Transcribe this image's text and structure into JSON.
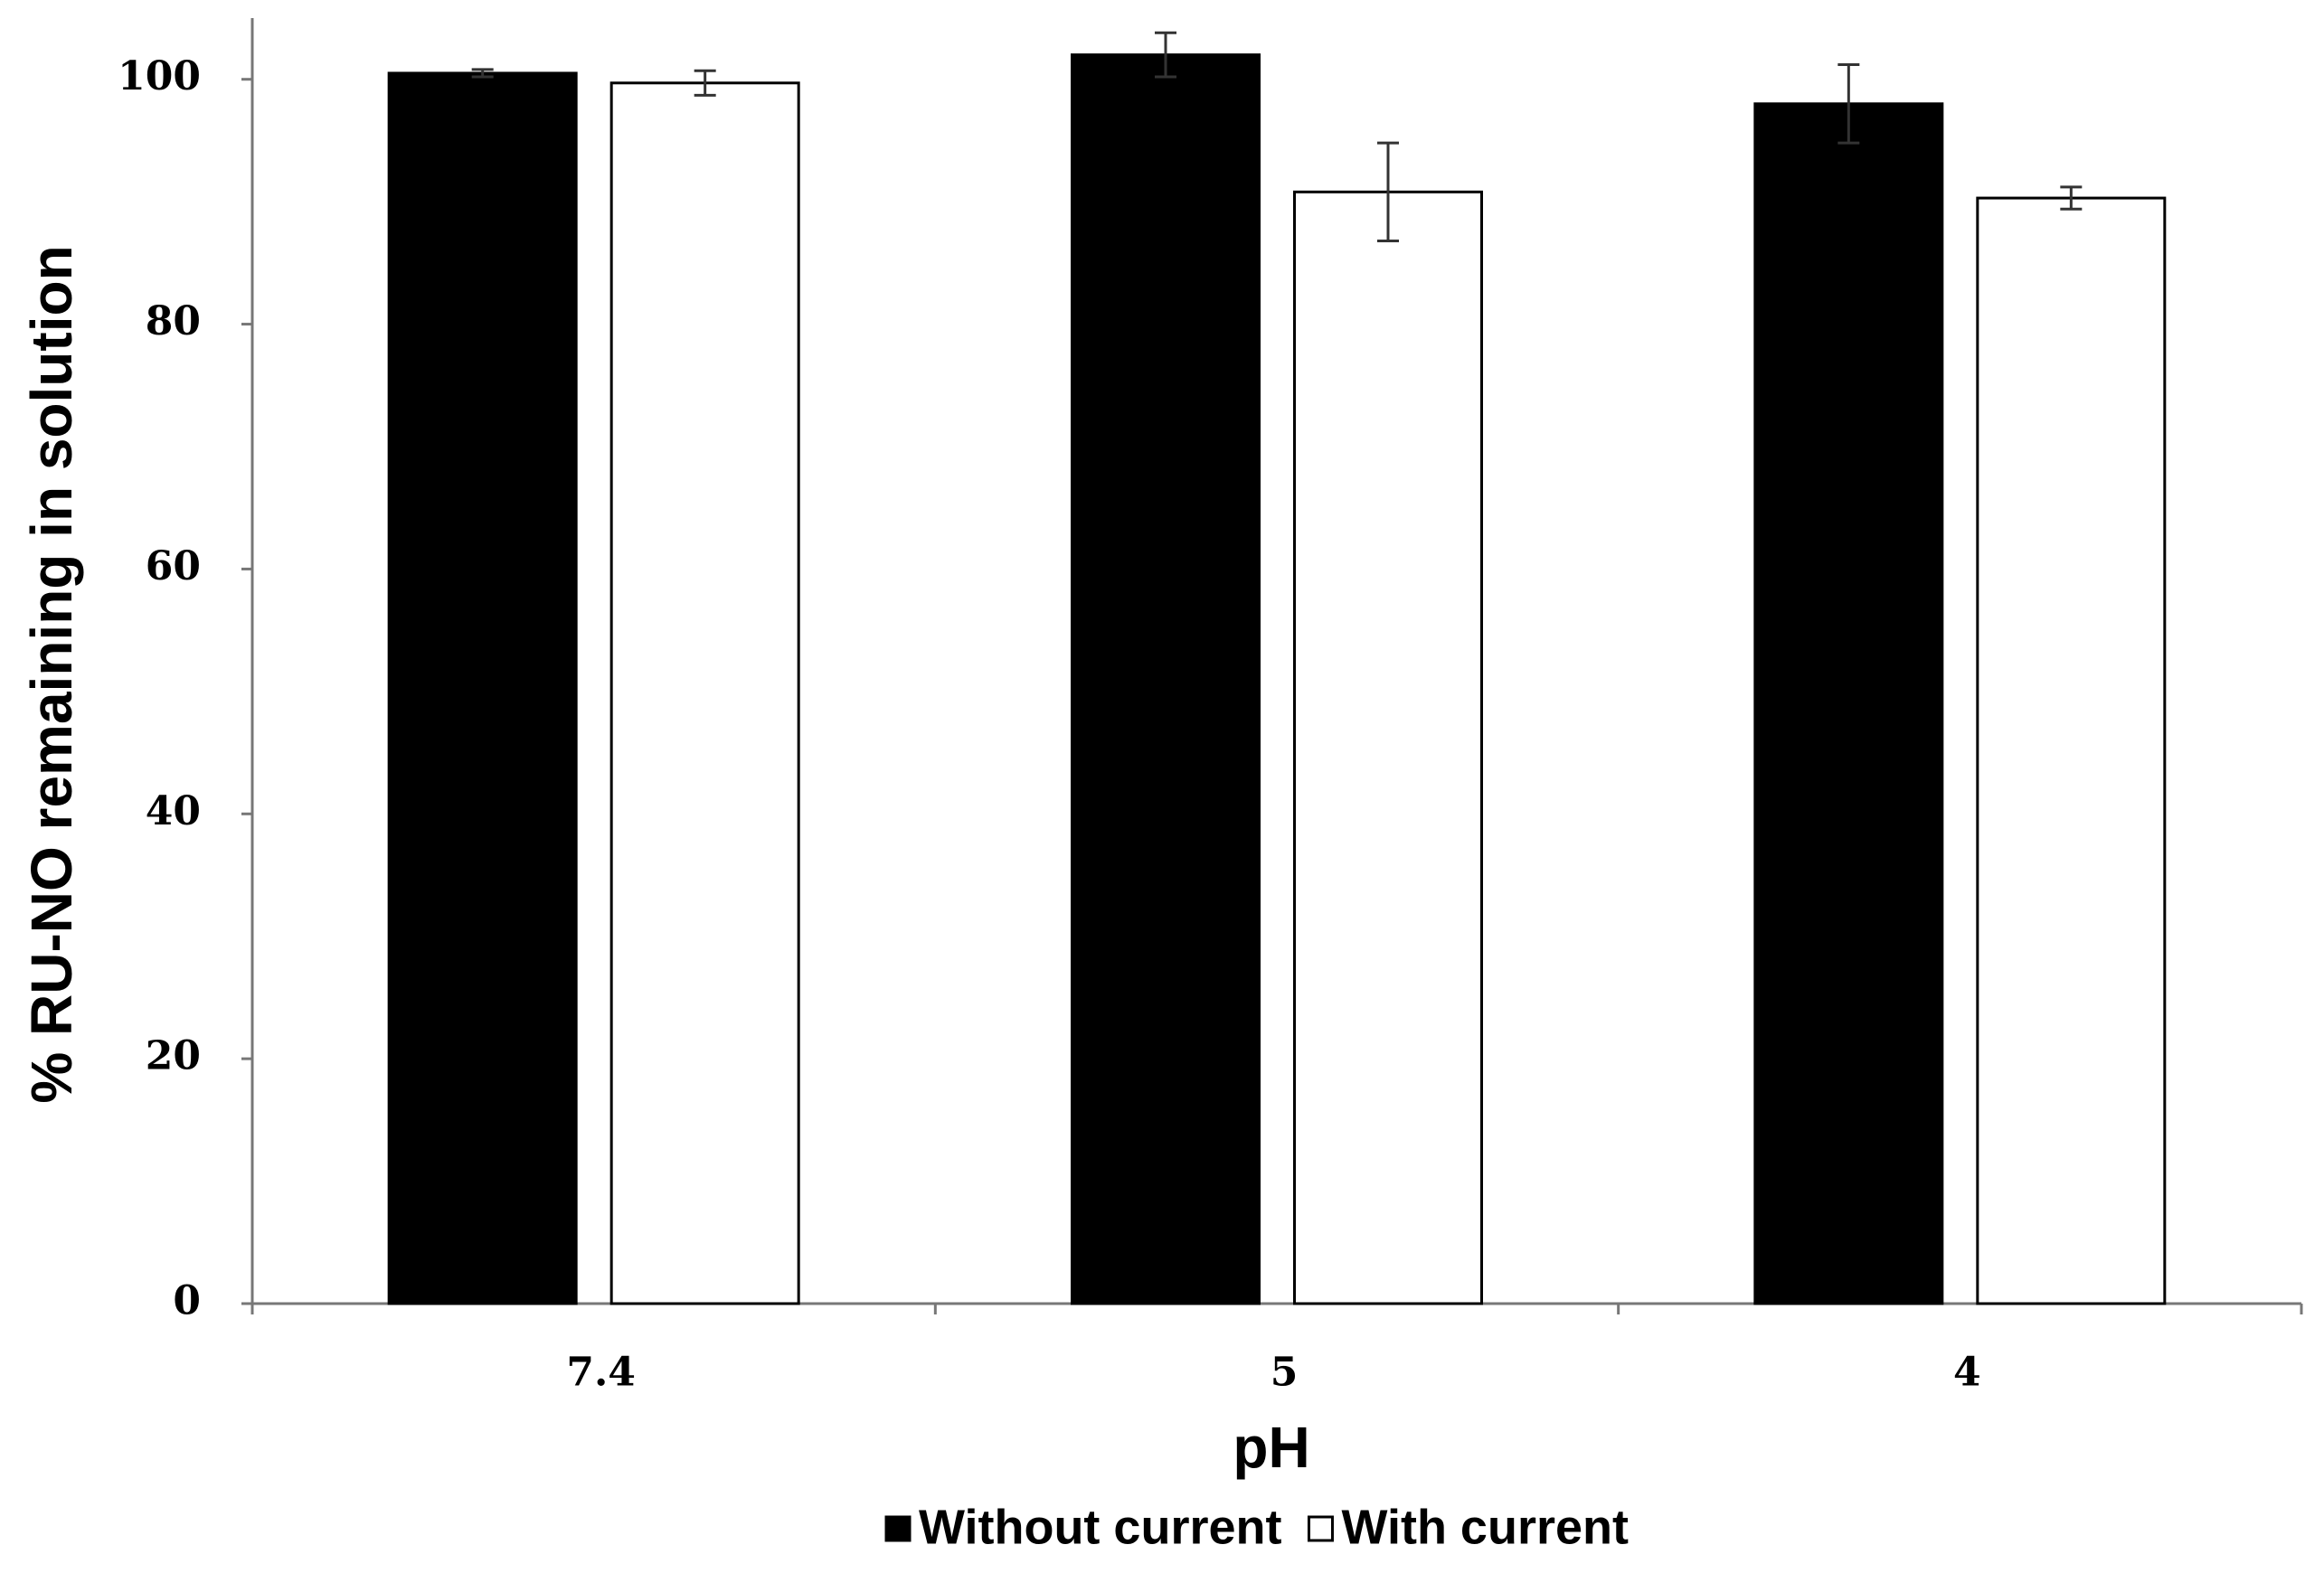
{
  "chart_data": {
    "type": "bar",
    "x_label": "pH",
    "y_label": "% RU-NO remaining in solution",
    "categories": [
      "7.4",
      "5",
      "4"
    ],
    "series": [
      {
        "name": "Without current",
        "color": "#000000",
        "values": [
          100.5,
          102,
          98
        ],
        "errors": [
          0.3,
          1.8,
          3.2
        ]
      },
      {
        "name": "With current",
        "color": "#ffffff",
        "values": [
          99.7,
          90.8,
          90.3
        ],
        "errors": [
          1,
          4,
          0.9
        ]
      }
    ],
    "ylim": [
      0,
      105
    ],
    "yticks": [
      0,
      20,
      40,
      60,
      80,
      100
    ],
    "legend": "bottom"
  }
}
